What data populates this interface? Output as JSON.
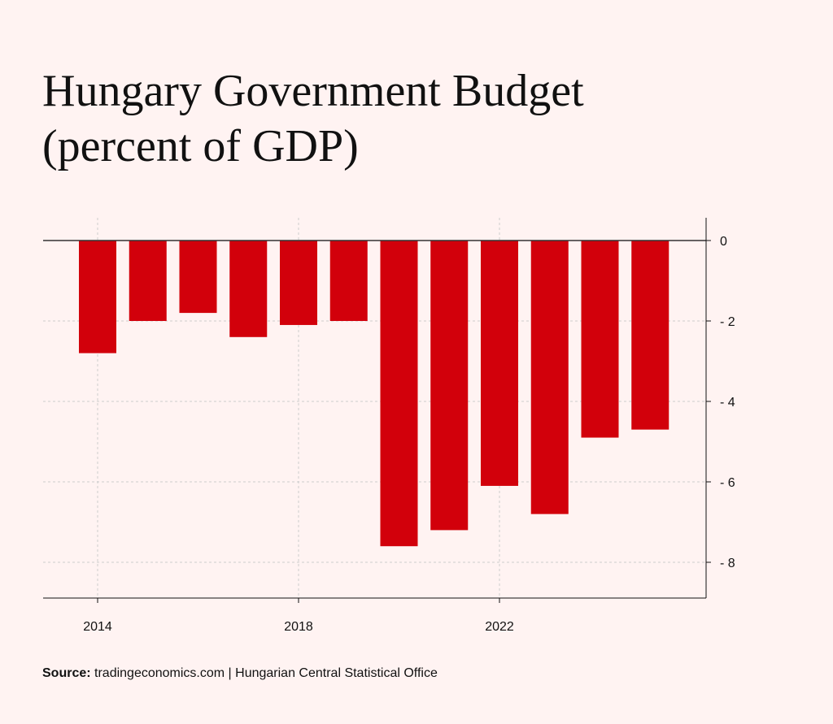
{
  "chart_data": {
    "type": "bar",
    "title_line1": "Hungary Government Budget",
    "title_line2": "(percent of GDP)",
    "categories": [
      "2014",
      "2015",
      "2016",
      "2017",
      "2018",
      "2019",
      "2020",
      "2021",
      "2022",
      "2023",
      "2024",
      "2025"
    ],
    "values": [
      -2.8,
      -2.0,
      -1.8,
      -2.4,
      -2.1,
      -2.0,
      -7.6,
      -7.2,
      -6.1,
      -6.8,
      -4.9,
      -4.7
    ],
    "x_tick_labels": [
      "2014",
      "2018",
      "2022"
    ],
    "y_ticks": [
      0,
      -2,
      -4,
      -6,
      -8
    ],
    "y_tick_labels": [
      "0",
      "- 2",
      "- 4",
      "- 6",
      "- 8"
    ],
    "ylim": [
      -8.9,
      0.6
    ],
    "y_axis_side": "right",
    "grid": true,
    "bar_color": "#d2000b"
  },
  "source": {
    "label": "Source:",
    "text": " tradingeconomics.com | Hungarian Central Statistical Office"
  }
}
